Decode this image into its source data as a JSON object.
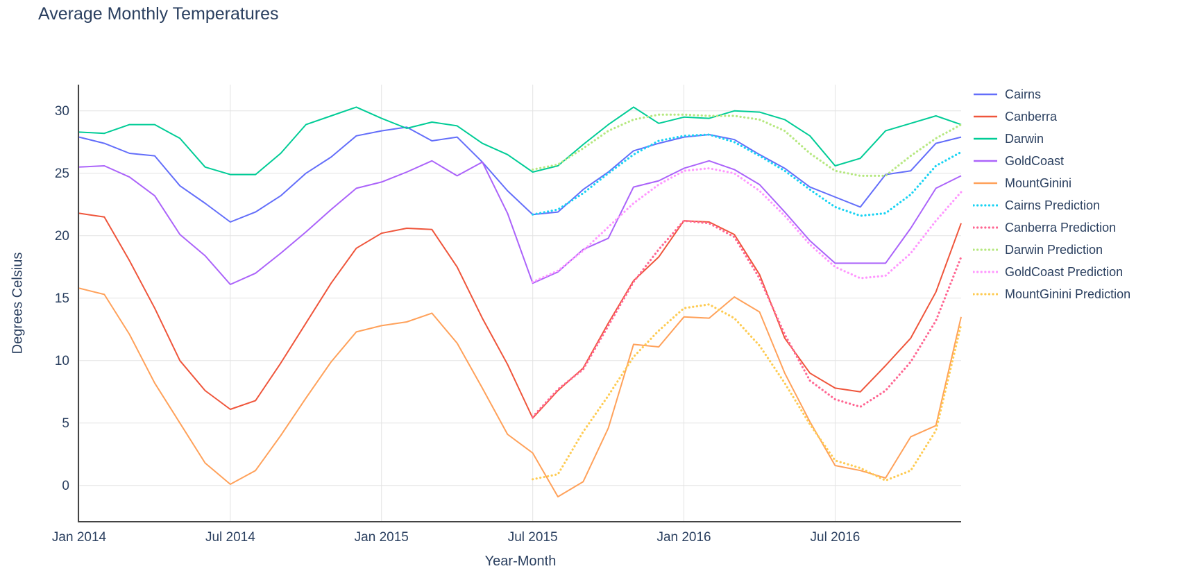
{
  "chart_data": {
    "type": "line",
    "title": "Average Monthly Temperatures",
    "xlabel": "Year-Month",
    "ylabel": "Degrees Celsius",
    "text_color": "#2a3f5f",
    "grid_color": "#e3e3e3",
    "axis_line_color": "#444444",
    "background_color": "#ffffff",
    "grid": true,
    "legend_position": "right",
    "ylim": [
      -2.9,
      32.1
    ],
    "y_ticks": [
      0,
      5,
      10,
      15,
      20,
      25,
      30
    ],
    "x_tick_labels": [
      "Jan 2014",
      "Jul 2014",
      "Jan 2015",
      "Jul 2015",
      "Jan 2016",
      "Jul 2016"
    ],
    "x_tick_month_index": [
      0,
      6,
      12,
      18,
      24,
      30
    ],
    "x_months": [
      "2014-01",
      "2014-02",
      "2014-03",
      "2014-04",
      "2014-05",
      "2014-06",
      "2014-07",
      "2014-08",
      "2014-09",
      "2014-10",
      "2014-11",
      "2014-12",
      "2015-01",
      "2015-02",
      "2015-03",
      "2015-04",
      "2015-05",
      "2015-06",
      "2015-07",
      "2015-08",
      "2015-09",
      "2015-10",
      "2015-11",
      "2015-12",
      "2016-01",
      "2016-02",
      "2016-03",
      "2016-04",
      "2016-05",
      "2016-06",
      "2016-07",
      "2016-08",
      "2016-09",
      "2016-10",
      "2016-11",
      "2016-12"
    ],
    "series": [
      {
        "name": "Cairns",
        "color": "#636EFA",
        "dash": "solid",
        "start_index": 0,
        "values": [
          27.9,
          27.4,
          26.6,
          26.4,
          24.0,
          22.6,
          21.1,
          21.9,
          23.2,
          25.0,
          26.3,
          28.0,
          28.4,
          28.7,
          27.6,
          27.9,
          25.9,
          23.6,
          21.7,
          21.9,
          23.7,
          25.1,
          26.8,
          27.4,
          27.9,
          28.1,
          27.7,
          26.5,
          25.4,
          23.9,
          23.1,
          22.3,
          24.9,
          25.2,
          27.4,
          27.9
        ]
      },
      {
        "name": "Canberra",
        "color": "#EF553B",
        "dash": "solid",
        "start_index": 0,
        "values": [
          21.8,
          21.5,
          18.0,
          14.2,
          10.0,
          7.6,
          6.1,
          6.8,
          9.8,
          13.0,
          16.2,
          19.0,
          20.2,
          20.6,
          20.5,
          17.5,
          13.4,
          9.7,
          5.4,
          7.6,
          9.4,
          13.0,
          16.4,
          18.3,
          21.2,
          21.1,
          20.1,
          16.9,
          11.8,
          9.0,
          7.8,
          7.5,
          9.6,
          11.8,
          15.5,
          21.0
        ]
      },
      {
        "name": "Darwin",
        "color": "#00CC96",
        "dash": "solid",
        "start_index": 0,
        "values": [
          28.3,
          28.2,
          28.9,
          28.9,
          27.8,
          25.5,
          24.9,
          24.9,
          26.6,
          28.9,
          29.6,
          30.3,
          29.4,
          28.6,
          29.1,
          28.8,
          27.4,
          26.5,
          25.1,
          25.6,
          27.3,
          28.9,
          30.3,
          29.0,
          29.5,
          29.4,
          30.0,
          29.9,
          29.3,
          28.0,
          25.6,
          26.2,
          28.4,
          29.0,
          29.6,
          28.9
        ]
      },
      {
        "name": "GoldCoast",
        "color": "#AB63FA",
        "dash": "solid",
        "start_index": 0,
        "values": [
          25.5,
          25.6,
          24.7,
          23.2,
          20.1,
          18.4,
          16.1,
          17.0,
          18.6,
          20.3,
          22.1,
          23.8,
          24.3,
          25.1,
          26.0,
          24.8,
          25.9,
          21.8,
          16.2,
          17.1,
          18.9,
          19.8,
          23.9,
          24.4,
          25.4,
          26.0,
          25.3,
          24.1,
          21.9,
          19.6,
          17.8,
          17.8,
          17.8,
          20.6,
          23.8,
          24.8
        ]
      },
      {
        "name": "MountGinini",
        "color": "#FFA15A",
        "dash": "solid",
        "start_index": 0,
        "values": [
          15.8,
          15.3,
          12.1,
          8.2,
          5.0,
          1.8,
          0.1,
          1.2,
          4.0,
          7.0,
          9.9,
          12.3,
          12.8,
          13.1,
          13.8,
          11.4,
          7.8,
          4.1,
          2.6,
          -0.9,
          0.3,
          4.6,
          11.3,
          11.1,
          13.5,
          13.4,
          15.1,
          13.9,
          9.0,
          5.1,
          1.6,
          1.2,
          0.6,
          3.9,
          4.8,
          13.5
        ]
      },
      {
        "name": "Cairns Prediction",
        "color": "#19D3F3",
        "dash": "dot",
        "start_index": 18,
        "values": [
          21.7,
          22.1,
          23.4,
          25.0,
          26.5,
          27.6,
          28.0,
          28.1,
          27.5,
          26.4,
          25.2,
          23.7,
          22.3,
          21.6,
          21.8,
          23.3,
          25.6,
          26.7
        ]
      },
      {
        "name": "Canberra Prediction",
        "color": "#FF6692",
        "dash": "dot",
        "start_index": 18,
        "values": [
          5.5,
          7.7,
          9.3,
          12.8,
          16.3,
          18.9,
          21.2,
          21.0,
          19.9,
          16.6,
          12.1,
          8.4,
          6.9,
          6.3,
          7.6,
          9.9,
          13.2,
          18.3
        ]
      },
      {
        "name": "Darwin Prediction",
        "color": "#B6E880",
        "dash": "dot",
        "start_index": 18,
        "values": [
          25.3,
          25.7,
          27.0,
          28.4,
          29.3,
          29.7,
          29.7,
          29.6,
          29.6,
          29.3,
          28.4,
          26.6,
          25.2,
          24.8,
          24.8,
          26.4,
          27.8,
          28.9
        ]
      },
      {
        "name": "GoldCoast Prediction",
        "color": "#FF97FF",
        "dash": "dot",
        "start_index": 18,
        "values": [
          16.3,
          17.2,
          18.8,
          20.7,
          22.6,
          24.1,
          25.2,
          25.4,
          25.0,
          23.6,
          21.6,
          19.3,
          17.5,
          16.6,
          16.8,
          18.6,
          21.2,
          23.5
        ]
      },
      {
        "name": "MountGinini Prediction",
        "color": "#FECB52",
        "dash": "dot",
        "start_index": 18,
        "values": [
          0.5,
          0.9,
          4.3,
          7.2,
          10.3,
          12.4,
          14.2,
          14.5,
          13.4,
          11.2,
          8.2,
          4.9,
          2.0,
          1.4,
          0.4,
          1.2,
          4.4,
          12.9
        ]
      }
    ]
  }
}
